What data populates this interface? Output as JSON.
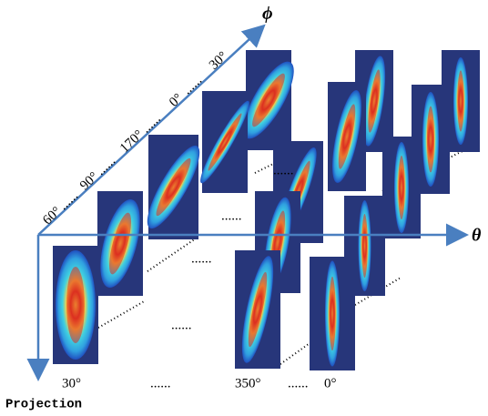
{
  "axes": {
    "phi": "ϕ",
    "theta": "θ",
    "projection": "Projection"
  },
  "phi_labels": [
    "60°",
    "90°",
    "170°",
    "0°",
    "30°"
  ],
  "projection_labels": [
    "30°",
    "350°",
    "0°"
  ],
  "ellipsis": "......"
}
